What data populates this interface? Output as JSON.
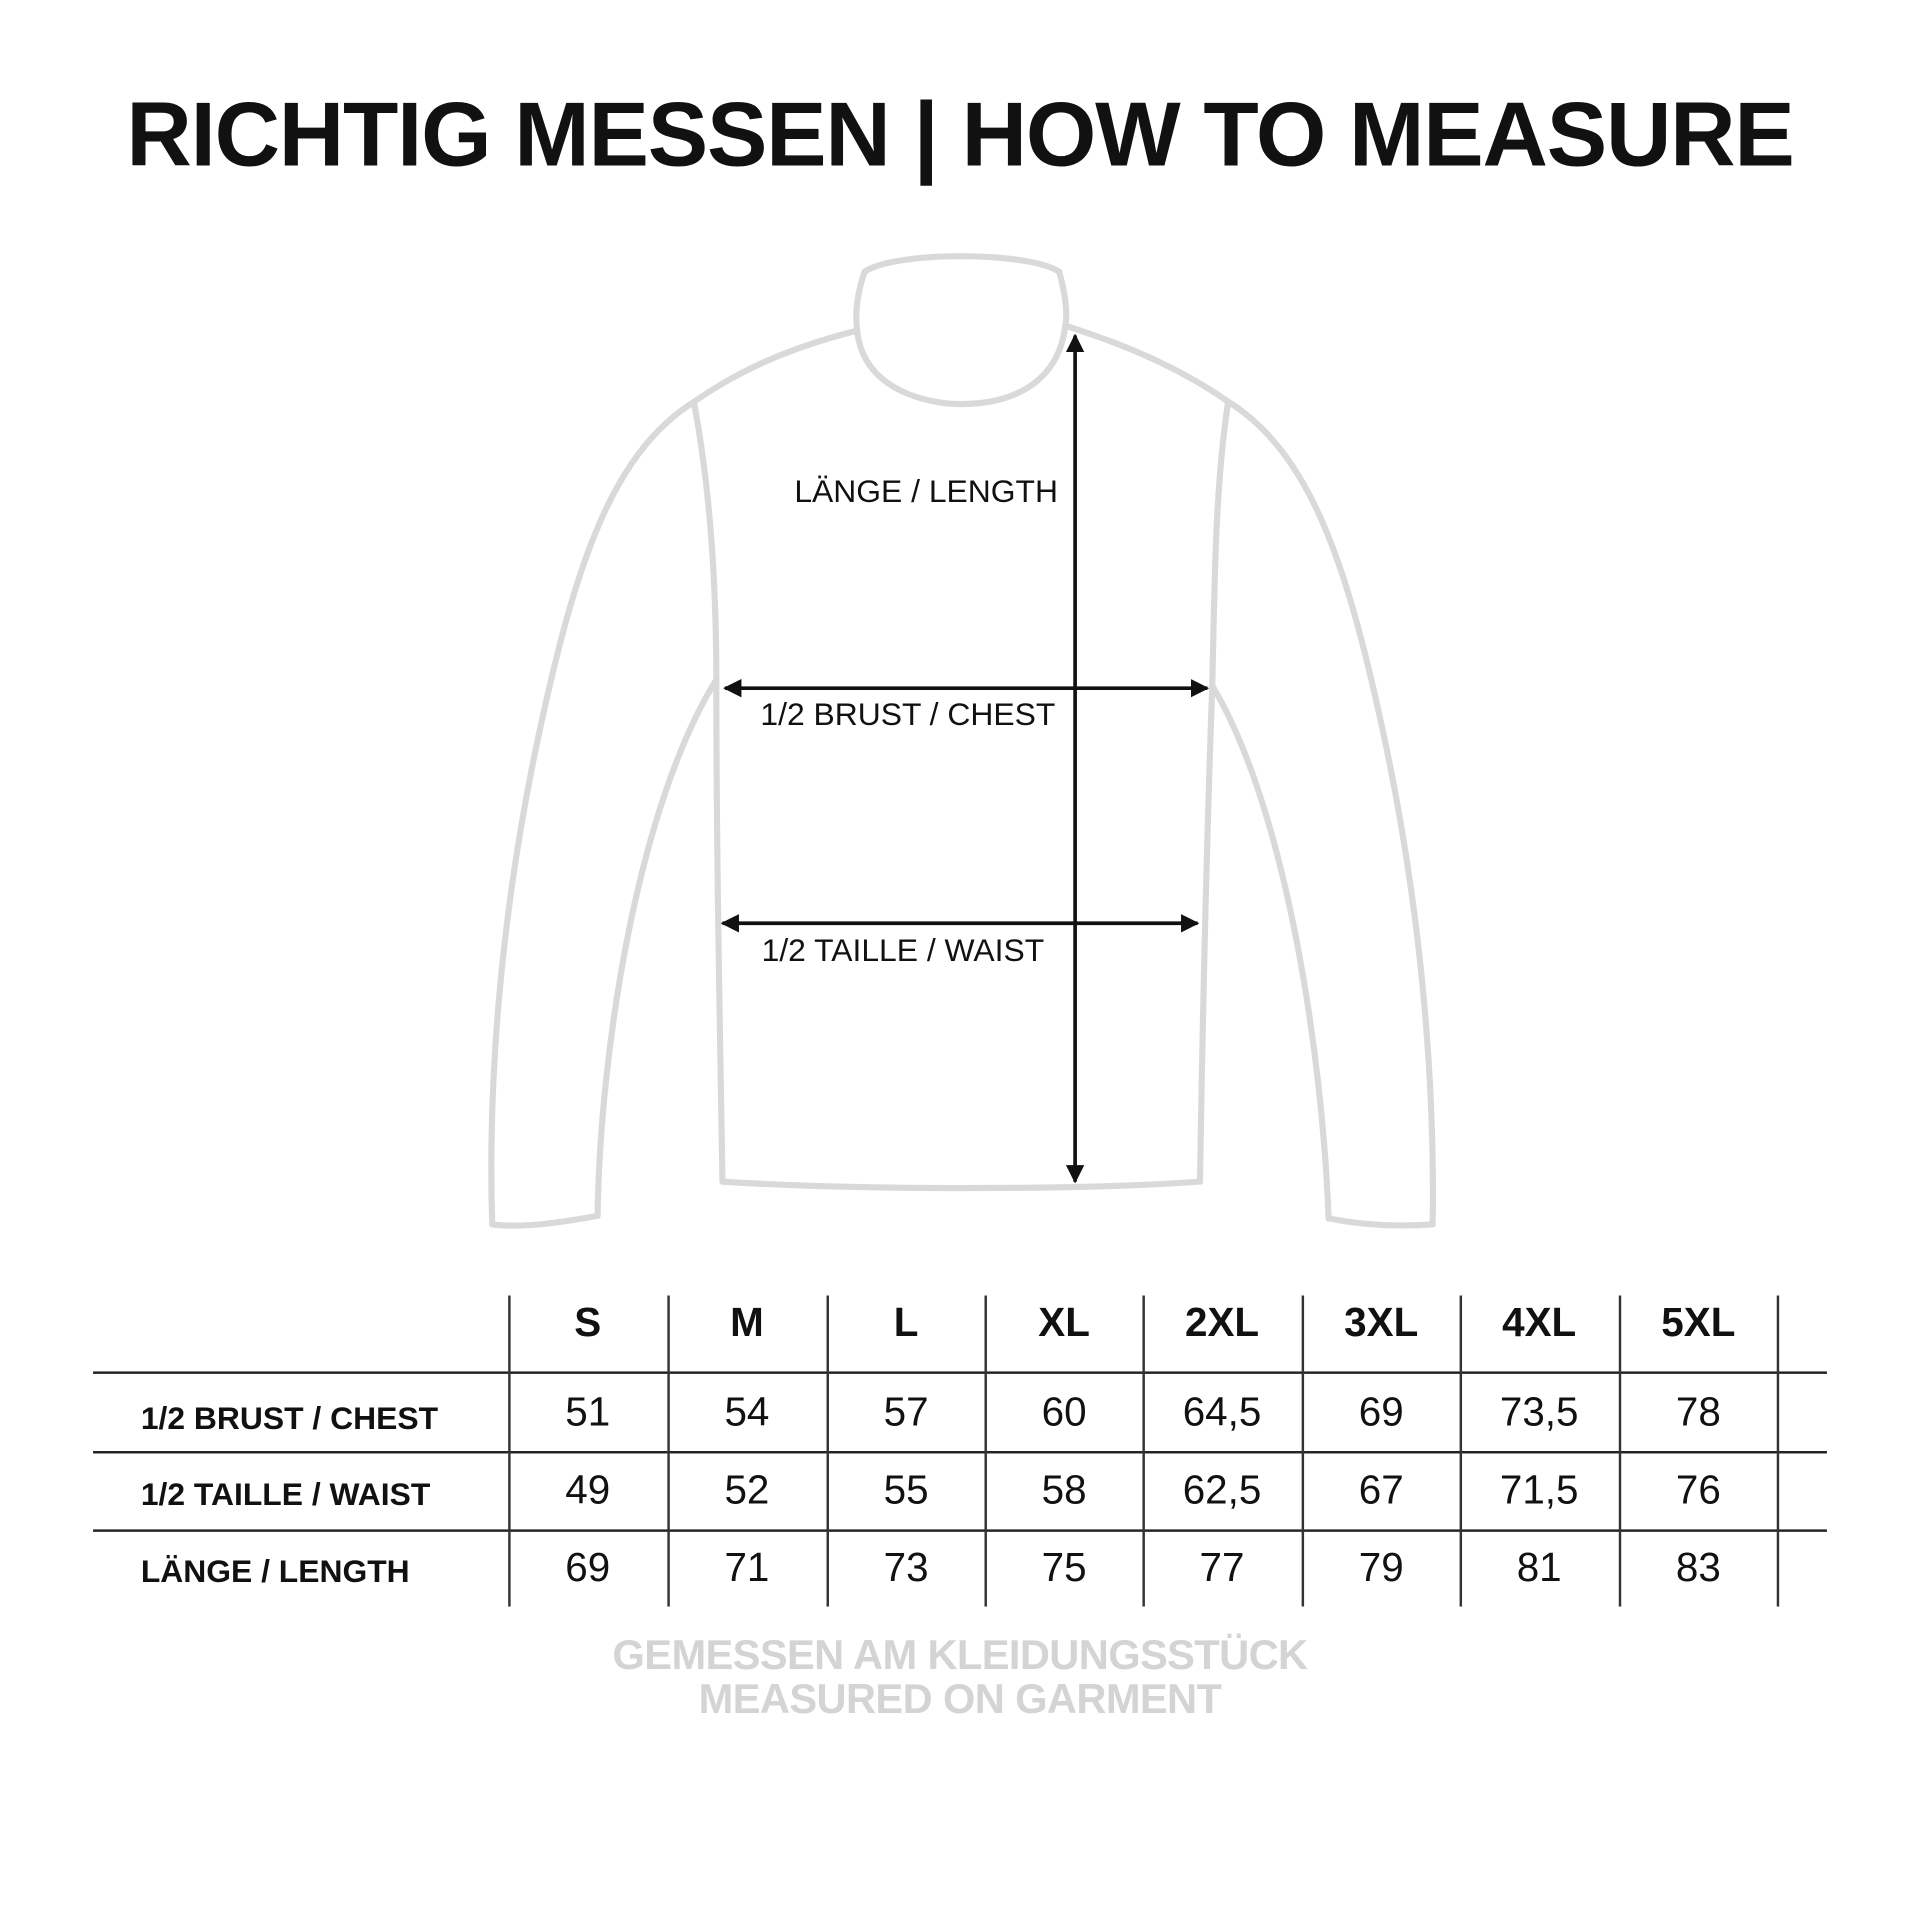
{
  "title": "RICHTIG MESSEN | HOW TO MEASURE",
  "diagram": {
    "labels": {
      "length": "LÄNGE / LENGTH",
      "chest": "1/2 BRUST / CHEST",
      "waist": "1/2 TAILLE / WAIST"
    },
    "outline_color": "#d9d9d9",
    "arrow_color": "#111111"
  },
  "table": {
    "sizes": [
      "S",
      "M",
      "L",
      "XL",
      "2XL",
      "3XL",
      "4XL",
      "5XL"
    ],
    "rows": [
      {
        "label": "1/2 BRUST / CHEST",
        "values": [
          "51",
          "54",
          "57",
          "60",
          "64,5",
          "69",
          "73,5",
          "78"
        ]
      },
      {
        "label": "1/2 TAILLE / WAIST",
        "values": [
          "49",
          "52",
          "55",
          "58",
          "62,5",
          "67",
          "71,5",
          "76"
        ]
      },
      {
        "label": "LÄNGE / LENGTH",
        "values": [
          "69",
          "71",
          "73",
          "75",
          "77",
          "79",
          "81",
          "83"
        ]
      }
    ]
  },
  "footer": {
    "line1": "GEMESSEN AM KLEIDUNGSSTÜCK",
    "line2": "MEASURED ON GARMENT",
    "color": "#d4d4d4"
  }
}
